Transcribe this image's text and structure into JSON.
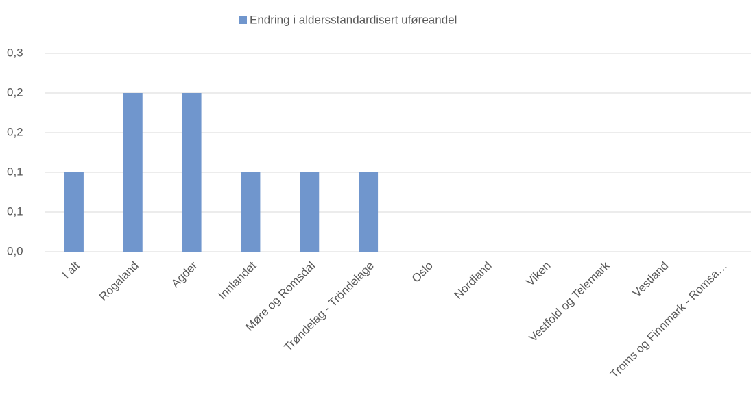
{
  "chart_data": {
    "type": "bar",
    "categories": [
      "I alt",
      "Rogaland",
      "Agder",
      "Innlandet",
      "Møre og Romsdal",
      "Trøndelag - Tröndelage",
      "Oslo",
      "Nordland",
      "Viken",
      "Vestfold og Telemark",
      "Vestland",
      "Troms og Finnmark - Romsa…"
    ],
    "series": [
      {
        "name": "Endring i aldersstandardisert uføreandel",
        "color": "#7096cd",
        "values": [
          0.12,
          0.24,
          0.24,
          0.12,
          0.12,
          0.12,
          0,
          0,
          0,
          0,
          0,
          0
        ]
      }
    ],
    "ylim": [
      0,
      0.3
    ],
    "yticks": [
      {
        "value": 0,
        "label": "0,0"
      },
      {
        "value": 0.06,
        "label": "0,1"
      },
      {
        "value": 0.12,
        "label": "0,1"
      },
      {
        "value": 0.18,
        "label": "0,2"
      },
      {
        "value": 0.24,
        "label": "0,2"
      },
      {
        "value": 0.3,
        "label": "0,3"
      }
    ],
    "grid": true,
    "legend": "top"
  }
}
